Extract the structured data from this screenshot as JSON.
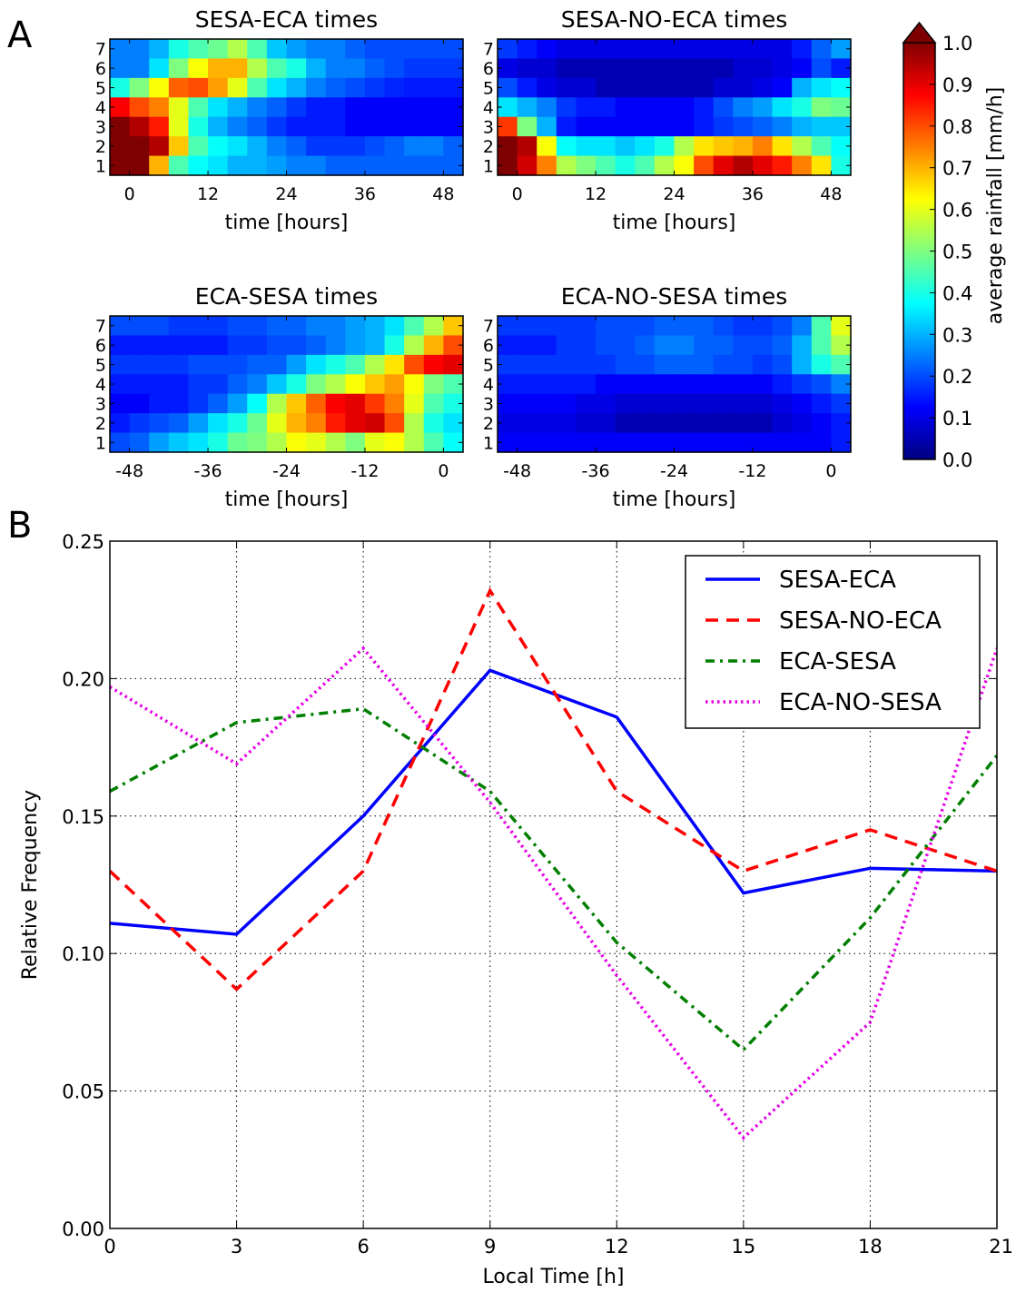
{
  "figure": {
    "panel_a_label": "A",
    "panel_b_label": "B",
    "colormap_stops": [
      "#00007f",
      "#0000ff",
      "#007fff",
      "#00ffff",
      "#7fff7f",
      "#ffff00",
      "#ff7f00",
      "#ff0000",
      "#7f0000"
    ]
  },
  "chart_data": [
    {
      "type": "heatmap",
      "title": "SESA-ECA times",
      "xlabel": "time [hours]",
      "xticks": [
        "0",
        "12",
        "24",
        "36",
        "48"
      ],
      "xlim": [
        -3,
        51
      ],
      "yticks": [
        "1",
        "2",
        "3",
        "4",
        "5",
        "6",
        "7"
      ],
      "cell_hours": 3,
      "x_start": -3,
      "rows_top_to_bottom": [
        [
          0.25,
          0.25,
          0.3,
          0.4,
          0.45,
          0.48,
          0.55,
          0.45,
          0.32,
          0.28,
          0.25,
          0.25,
          0.22,
          0.2,
          0.2,
          0.2,
          0.2,
          0.2
        ],
        [
          0.25,
          0.25,
          0.35,
          0.5,
          0.62,
          0.7,
          0.7,
          0.55,
          0.45,
          0.4,
          0.3,
          0.25,
          0.25,
          0.22,
          0.2,
          0.18,
          0.18,
          0.18
        ],
        [
          0.4,
          0.5,
          0.62,
          0.78,
          0.8,
          0.72,
          0.6,
          0.45,
          0.35,
          0.3,
          0.25,
          0.22,
          0.2,
          0.18,
          0.16,
          0.15,
          0.15,
          0.15
        ],
        [
          0.88,
          0.8,
          0.75,
          0.6,
          0.45,
          0.35,
          0.3,
          0.25,
          0.22,
          0.18,
          0.15,
          0.15,
          0.12,
          0.12,
          0.12,
          0.12,
          0.12,
          0.12
        ],
        [
          1.0,
          0.95,
          0.85,
          0.6,
          0.4,
          0.3,
          0.25,
          0.22,
          0.18,
          0.15,
          0.15,
          0.15,
          0.12,
          0.12,
          0.12,
          0.12,
          0.12,
          0.12
        ],
        [
          1.0,
          1.0,
          0.95,
          0.68,
          0.45,
          0.38,
          0.35,
          0.3,
          0.25,
          0.22,
          0.18,
          0.18,
          0.18,
          0.2,
          0.22,
          0.25,
          0.25,
          0.22
        ],
        [
          1.0,
          1.0,
          0.7,
          0.45,
          0.38,
          0.35,
          0.3,
          0.3,
          0.28,
          0.25,
          0.25,
          0.22,
          0.22,
          0.22,
          0.22,
          0.22,
          0.22,
          0.22
        ]
      ]
    },
    {
      "type": "heatmap",
      "title": "SESA-NO-ECA times",
      "xlabel": "time [hours]",
      "xticks": [
        "0",
        "12",
        "24",
        "36",
        "48"
      ],
      "xlim": [
        -3,
        51
      ],
      "yticks": [
        "1",
        "2",
        "3",
        "4",
        "5",
        "6",
        "7"
      ],
      "cell_hours": 3,
      "x_start": -3,
      "rows_top_to_bottom": [
        [
          0.18,
          0.15,
          0.12,
          0.1,
          0.1,
          0.1,
          0.1,
          0.1,
          0.1,
          0.1,
          0.1,
          0.1,
          0.1,
          0.1,
          0.1,
          0.15,
          0.22,
          0.28
        ],
        [
          0.1,
          0.08,
          0.08,
          0.05,
          0.05,
          0.05,
          0.05,
          0.05,
          0.05,
          0.05,
          0.05,
          0.05,
          0.08,
          0.08,
          0.1,
          0.12,
          0.2,
          0.15
        ],
        [
          0.2,
          0.15,
          0.1,
          0.08,
          0.08,
          0.05,
          0.05,
          0.05,
          0.05,
          0.05,
          0.05,
          0.08,
          0.08,
          0.1,
          0.12,
          0.3,
          0.35,
          0.38
        ],
        [
          0.35,
          0.3,
          0.25,
          0.18,
          0.15,
          0.15,
          0.12,
          0.12,
          0.12,
          0.12,
          0.15,
          0.2,
          0.25,
          0.28,
          0.35,
          0.4,
          0.5,
          0.48
        ],
        [
          0.82,
          0.5,
          0.3,
          0.15,
          0.12,
          0.12,
          0.12,
          0.12,
          0.12,
          0.12,
          0.15,
          0.18,
          0.2,
          0.22,
          0.25,
          0.3,
          0.32,
          0.32
        ],
        [
          1.0,
          0.95,
          0.62,
          0.38,
          0.35,
          0.35,
          0.32,
          0.35,
          0.4,
          0.55,
          0.65,
          0.68,
          0.7,
          0.75,
          0.65,
          0.55,
          0.45,
          0.38
        ],
        [
          1.0,
          0.92,
          0.75,
          0.55,
          0.5,
          0.45,
          0.4,
          0.45,
          0.55,
          0.62,
          0.8,
          0.9,
          0.95,
          0.9,
          0.85,
          0.75,
          0.65,
          0.4
        ]
      ]
    },
    {
      "type": "heatmap",
      "title": "ECA-SESA times",
      "xlabel": "time [hours]",
      "xticks": [
        "-48",
        "-36",
        "-24",
        "-12",
        "0"
      ],
      "xlim": [
        -51,
        3
      ],
      "yticks": [
        "1",
        "2",
        "3",
        "4",
        "5",
        "6",
        "7"
      ],
      "cell_hours": 3,
      "x_start": -51,
      "rows_top_to_bottom": [
        [
          0.2,
          0.2,
          0.2,
          0.18,
          0.18,
          0.18,
          0.2,
          0.2,
          0.22,
          0.22,
          0.25,
          0.25,
          0.28,
          0.3,
          0.35,
          0.45,
          0.55,
          0.68
        ],
        [
          0.15,
          0.15,
          0.15,
          0.15,
          0.15,
          0.15,
          0.18,
          0.18,
          0.2,
          0.2,
          0.22,
          0.25,
          0.28,
          0.3,
          0.4,
          0.55,
          0.7,
          0.8
        ],
        [
          0.18,
          0.18,
          0.18,
          0.18,
          0.2,
          0.2,
          0.2,
          0.22,
          0.22,
          0.28,
          0.35,
          0.4,
          0.45,
          0.55,
          0.65,
          0.8,
          0.88,
          0.9
        ],
        [
          0.15,
          0.15,
          0.15,
          0.15,
          0.18,
          0.18,
          0.22,
          0.25,
          0.32,
          0.4,
          0.5,
          0.55,
          0.62,
          0.68,
          0.72,
          0.62,
          0.5,
          0.45
        ],
        [
          0.12,
          0.12,
          0.15,
          0.15,
          0.18,
          0.22,
          0.28,
          0.38,
          0.55,
          0.68,
          0.78,
          0.88,
          0.9,
          0.82,
          0.75,
          0.6,
          0.45,
          0.4
        ],
        [
          0.15,
          0.18,
          0.2,
          0.22,
          0.28,
          0.35,
          0.4,
          0.48,
          0.6,
          0.7,
          0.75,
          0.85,
          0.9,
          0.92,
          0.8,
          0.55,
          0.4,
          0.35
        ],
        [
          0.2,
          0.22,
          0.28,
          0.32,
          0.35,
          0.4,
          0.48,
          0.5,
          0.55,
          0.62,
          0.6,
          0.55,
          0.5,
          0.6,
          0.62,
          0.55,
          0.45,
          0.38
        ]
      ]
    },
    {
      "type": "heatmap",
      "title": "ECA-NO-SESA times",
      "xlabel": "time [hours]",
      "xticks": [
        "-48",
        "-36",
        "-24",
        "-12",
        "0"
      ],
      "xlim": [
        -51,
        3
      ],
      "yticks": [
        "1",
        "2",
        "3",
        "4",
        "5",
        "6",
        "7"
      ],
      "cell_hours": 3,
      "x_start": -51,
      "rows_top_to_bottom": [
        [
          0.18,
          0.18,
          0.18,
          0.18,
          0.18,
          0.2,
          0.2,
          0.2,
          0.22,
          0.22,
          0.22,
          0.2,
          0.18,
          0.18,
          0.2,
          0.25,
          0.45,
          0.6
        ],
        [
          0.15,
          0.15,
          0.15,
          0.18,
          0.18,
          0.2,
          0.2,
          0.22,
          0.25,
          0.25,
          0.22,
          0.22,
          0.2,
          0.2,
          0.22,
          0.3,
          0.45,
          0.55
        ],
        [
          0.18,
          0.18,
          0.18,
          0.18,
          0.18,
          0.18,
          0.2,
          0.2,
          0.22,
          0.22,
          0.22,
          0.2,
          0.2,
          0.18,
          0.2,
          0.3,
          0.4,
          0.45
        ],
        [
          0.15,
          0.15,
          0.15,
          0.15,
          0.15,
          0.12,
          0.12,
          0.12,
          0.12,
          0.12,
          0.12,
          0.12,
          0.12,
          0.12,
          0.15,
          0.18,
          0.2,
          0.25
        ],
        [
          0.12,
          0.12,
          0.12,
          0.12,
          0.1,
          0.1,
          0.08,
          0.08,
          0.08,
          0.08,
          0.08,
          0.08,
          0.08,
          0.08,
          0.1,
          0.12,
          0.15,
          0.18
        ],
        [
          0.1,
          0.1,
          0.1,
          0.1,
          0.08,
          0.08,
          0.05,
          0.05,
          0.05,
          0.05,
          0.05,
          0.05,
          0.05,
          0.05,
          0.08,
          0.1,
          0.12,
          0.15
        ],
        [
          0.12,
          0.12,
          0.12,
          0.12,
          0.12,
          0.12,
          0.12,
          0.12,
          0.12,
          0.12,
          0.12,
          0.12,
          0.12,
          0.12,
          0.12,
          0.12,
          0.12,
          0.15
        ]
      ]
    },
    {
      "type": "colorbar",
      "label": "average rainfall [mm/h]",
      "ticks": [
        "0.0",
        "0.1",
        "0.2",
        "0.3",
        "0.4",
        "0.5",
        "0.6",
        "0.7",
        "0.8",
        "0.9",
        "1.0"
      ],
      "range": [
        0,
        1
      ],
      "extend": "max"
    },
    {
      "type": "line",
      "xlabel": "Local Time [h]",
      "ylabel": "Relative Frequency",
      "x": [
        0,
        3,
        6,
        9,
        12,
        15,
        18,
        21
      ],
      "xticks": [
        "0",
        "3",
        "6",
        "9",
        "12",
        "15",
        "18",
        "21"
      ],
      "yticks": [
        "0.00",
        "0.05",
        "0.10",
        "0.15",
        "0.20",
        "0.25"
      ],
      "xlim": [
        0,
        21
      ],
      "ylim": [
        0,
        0.25
      ],
      "grid": true,
      "legend_position": "top-right",
      "series": [
        {
          "name": "SESA-ECA",
          "color": "#0000ff",
          "style": "solid",
          "values": [
            0.111,
            0.107,
            0.15,
            0.203,
            0.186,
            0.122,
            0.131,
            0.13
          ]
        },
        {
          "name": "SESA-NO-ECA",
          "color": "#ff0000",
          "style": "dashed",
          "values": [
            0.13,
            0.087,
            0.13,
            0.232,
            0.159,
            0.13,
            0.145,
            0.13
          ]
        },
        {
          "name": "ECA-SESA",
          "color": "#007f00",
          "style": "dashdot",
          "values": [
            0.159,
            0.184,
            0.189,
            0.159,
            0.104,
            0.065,
            0.113,
            0.172
          ]
        },
        {
          "name": "ECA-NO-SESA",
          "color": "#e600e6",
          "style": "dotted",
          "values": [
            0.197,
            0.169,
            0.211,
            0.155,
            0.092,
            0.033,
            0.075,
            0.211
          ]
        }
      ]
    }
  ]
}
